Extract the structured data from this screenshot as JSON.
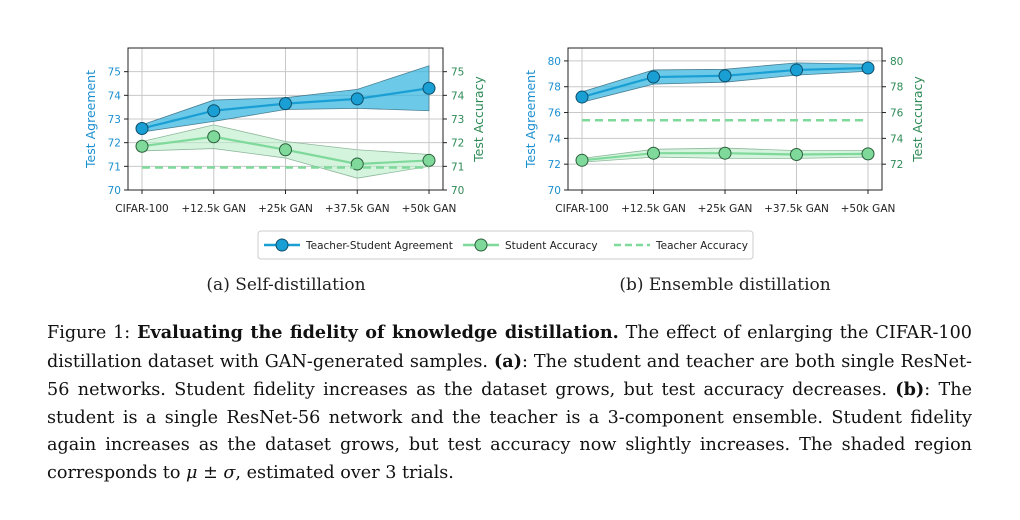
{
  "colors": {
    "agreement": "#1a9fd4",
    "agreement_band": "#3bb8e0",
    "student": "#7fd99a",
    "student_band": "#b8ecc8",
    "teacher": "#7fd99a",
    "left_axis": "#1a8fd0",
    "right_axis": "#2e8b57"
  },
  "chart_data": [
    {
      "type": "line",
      "id": "a",
      "categories": [
        "CIFAR-100",
        "+12.5k GAN",
        "+25k GAN",
        "+37.5k GAN",
        "+50k GAN"
      ],
      "ylabel": "Test Agreement",
      "y2label": "Test Accuracy",
      "ylim": [
        70,
        76
      ],
      "yticks": [
        70,
        71,
        72,
        73,
        74,
        75
      ],
      "y2lim": [
        70,
        76
      ],
      "y2ticks": [
        70,
        71,
        72,
        73,
        74,
        75
      ],
      "series": [
        {
          "name": "Teacher-Student Agreement",
          "axis": "left",
          "values": [
            72.6,
            73.35,
            73.65,
            73.85,
            74.3
          ],
          "lower": [
            72.45,
            72.9,
            73.4,
            73.45,
            73.35
          ],
          "upper": [
            72.75,
            73.8,
            73.9,
            74.25,
            75.25
          ]
        },
        {
          "name": "Student Accuracy",
          "axis": "right",
          "values": [
            71.85,
            72.25,
            71.7,
            71.1,
            71.25
          ],
          "lower": [
            71.65,
            71.75,
            71.35,
            70.5,
            71.0
          ],
          "upper": [
            72.05,
            72.75,
            72.05,
            71.7,
            71.5
          ]
        },
        {
          "name": "Teacher Accuracy",
          "axis": "right",
          "style": "dashed",
          "values": [
            70.95,
            70.95,
            70.95,
            70.95,
            70.95
          ]
        }
      ],
      "subcaption": "(a) Self-distillation"
    },
    {
      "type": "line",
      "id": "b",
      "categories": [
        "CIFAR-100",
        "+12.5k GAN",
        "+25k GAN",
        "+37.5k GAN",
        "+50k GAN"
      ],
      "ylabel": "Test Agreement",
      "y2label": "Test Accuracy",
      "ylim": [
        70,
        81
      ],
      "yticks": [
        70,
        72,
        74,
        76,
        78,
        80
      ],
      "y2lim": [
        70,
        81
      ],
      "y2ticks": [
        72,
        74,
        76,
        78,
        80
      ],
      "series": [
        {
          "name": "Teacher-Student Agreement",
          "axis": "left",
          "values": [
            77.2,
            78.75,
            78.85,
            79.3,
            79.45
          ],
          "lower": [
            76.8,
            78.2,
            78.35,
            78.9,
            79.2
          ],
          "upper": [
            77.6,
            79.3,
            79.35,
            79.85,
            79.75
          ]
        },
        {
          "name": "Student Accuracy",
          "axis": "right",
          "values": [
            72.3,
            72.85,
            72.85,
            72.75,
            72.8
          ],
          "lower": [
            72.15,
            72.55,
            72.45,
            72.45,
            72.55
          ],
          "upper": [
            72.45,
            73.15,
            73.25,
            73.05,
            73.05
          ]
        },
        {
          "name": "Teacher Accuracy",
          "axis": "right",
          "style": "dashed",
          "values": [
            75.4,
            75.4,
            75.4,
            75.4,
            75.4
          ]
        }
      ],
      "subcaption": "(b) Ensemble distillation"
    }
  ],
  "legend": {
    "items": [
      "Teacher-Student Agreement",
      "Student Accuracy",
      "Teacher Accuracy"
    ]
  },
  "caption": {
    "prefix": "Figure 1: ",
    "bold": "Evaluating the fidelity of knowledge distillation.",
    "text1": " The effect of enlarging the CIFAR-100 distillation dataset with GAN-generated samples. ",
    "a_label": "(a)",
    "text2": ": The student and teacher are both single ResNet-56 networks. Student fidelity increases as the dataset grows, but test accuracy decreases. ",
    "b_label": "(b)",
    "text3": ": The student is a single ResNet-56 network and the teacher is a 3-component ensemble. Student fidelity again increases as the dataset grows, but test accuracy now slightly increases. The shaded region corresponds to ",
    "math": "μ ± σ",
    "text4": ", estimated over 3 trials."
  }
}
